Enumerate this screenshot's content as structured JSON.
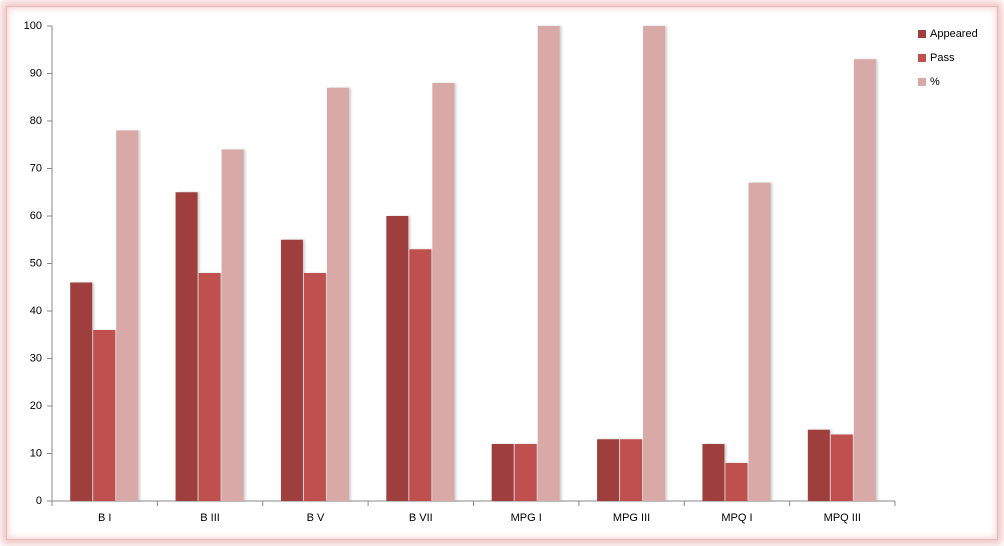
{
  "chart_data": {
    "type": "bar",
    "categories": [
      "B I",
      "B III",
      "B V",
      "B VII",
      "MPG I",
      "MPG III",
      "MPQ I",
      "MPQ III"
    ],
    "series": [
      {
        "name": "Appeared",
        "color": "#9e3f3d",
        "values": [
          46,
          65,
          55,
          60,
          12,
          13,
          12,
          15
        ]
      },
      {
        "name": "Pass",
        "color": "#c0504d",
        "values": [
          36,
          48,
          48,
          53,
          12,
          13,
          8,
          14
        ]
      },
      {
        "name": "%",
        "color": "#d9a9a8",
        "values": [
          78,
          74,
          87,
          88,
          100,
          100,
          67,
          93
        ]
      }
    ],
    "ylim": [
      0,
      100
    ],
    "yticks": [
      0,
      10,
      20,
      30,
      40,
      50,
      60,
      70,
      80,
      90,
      100
    ]
  }
}
